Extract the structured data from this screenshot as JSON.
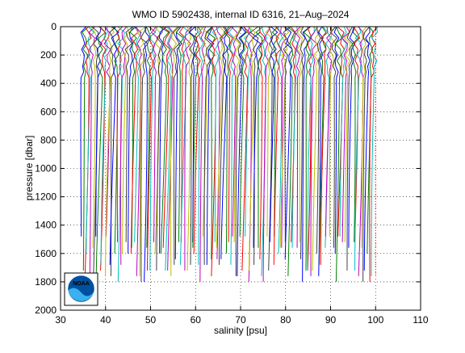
{
  "chart_data": {
    "type": "line",
    "title": "WMO ID 5902438, internal ID 6316, 21–Aug–2024",
    "xlabel": "salinity [psu]",
    "ylabel": "pressure [dbar]",
    "xlim": [
      30,
      110
    ],
    "ylim": [
      0,
      2000
    ],
    "y_reversed": true,
    "xticks": [
      30,
      40,
      50,
      60,
      70,
      80,
      90,
      100,
      110
    ],
    "yticks": [
      0,
      200,
      400,
      600,
      800,
      1000,
      1200,
      1400,
      1600,
      1800,
      2000
    ],
    "grid": true,
    "grid_style": "dotted",
    "series_colors": [
      "#0000ff",
      "#008000",
      "#ff0000",
      "#00bfbf",
      "#bf00bf",
      "#bfbf00",
      "#404040"
    ],
    "offset_profiles": {
      "count": 130,
      "first_offset_psu": 35.0,
      "last_offset_psu": 99.9,
      "offset_step_psu": 0.5,
      "max_pressure_dbar_range": [
        1480,
        1820
      ]
    },
    "reference_line": {
      "x": 100,
      "color": "#ff0000",
      "style": "dotted"
    }
  },
  "logo": {
    "text": "NOAA",
    "name": "noaa-logo"
  }
}
